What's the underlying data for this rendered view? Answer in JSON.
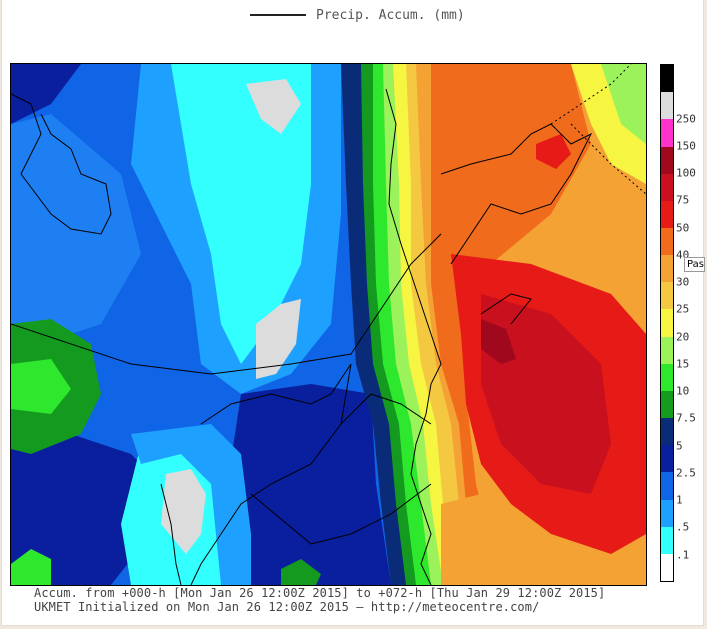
{
  "header": {
    "legend_label": "Precip. Accum. (mm)"
  },
  "colorbar": {
    "labels": [
      ".1",
      ".5",
      "1",
      "2.5",
      "5",
      "7.5",
      "10",
      "15",
      "20",
      "25",
      "30",
      "40",
      "50",
      "75",
      "100",
      "150",
      "250"
    ],
    "colors": [
      "#ffffff",
      "#33ffff",
      "#1ea0ff",
      "#1064e6",
      "#0a1f9e",
      "#0a2c78",
      "#139a1f",
      "#2ee82e",
      "#9bf25a",
      "#f5f542",
      "#f5c842",
      "#f5a235",
      "#f06b1c",
      "#e61a16",
      "#c8101e",
      "#a0081e",
      "#ff33cc",
      "#dcdcdc",
      "#000000"
    ]
  },
  "tooltip": {
    "text": "Pas"
  },
  "footer": {
    "line1": "Accum. from +000-h [Mon Jan 26 12:00Z 2015] to +072-h [Thu Jan 29 12:00Z 2015]",
    "line2": "UKMET Initialized on Mon Jan 26 12:00Z 2015 — http://meteocentre.com/"
  }
}
